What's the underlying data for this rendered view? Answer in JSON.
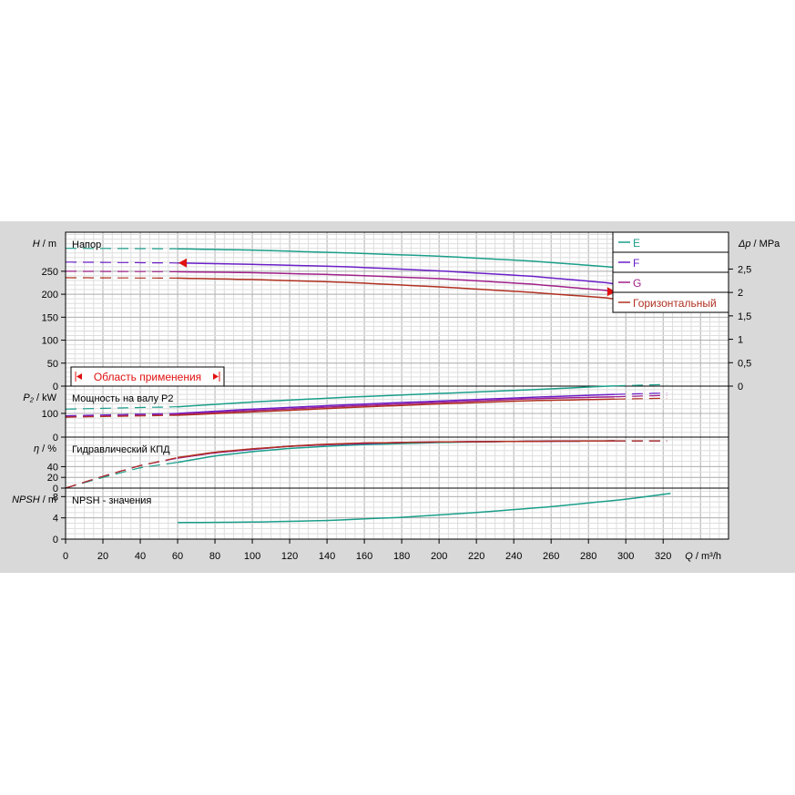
{
  "chart_data": {
    "type": "line",
    "x_axis": {
      "label_symbol": "Q",
      "label_unit": "m³/h",
      "range": [
        0,
        355
      ],
      "ticks": [
        "0",
        "20",
        "40",
        "60",
        "80",
        "100",
        "120",
        "140",
        "160",
        "180",
        "200",
        "220",
        "240",
        "260",
        "280",
        "300",
        "320"
      ]
    },
    "panels": [
      {
        "id": "head",
        "title": "Напор",
        "y_symbol": "H",
        "y_unit": "m",
        "range": [
          0,
          335
        ],
        "ticks": [
          "0",
          "50",
          "100",
          "150",
          "200",
          "250"
        ],
        "right_axis": {
          "symbol": "Δp",
          "unit": "MPa",
          "ticks": [
            "0",
            "0,5",
            "1",
            "1,5",
            "2",
            "2,5"
          ]
        },
        "series": [
          {
            "name": "E",
            "color": "#1a9e8a",
            "dash_until": 60,
            "x": [
              0,
              60,
              100,
              150,
              200,
              250,
              290,
              322
            ],
            "y": [
              300,
              299,
              296,
              290,
              283,
              272,
              260,
              247
            ]
          },
          {
            "name": "F",
            "color": "#6a1fc8",
            "dash_until": 60,
            "x": [
              0,
              60,
              100,
              150,
              200,
              250,
              290,
              322
            ],
            "y": [
              270,
              268,
              265,
              260,
              251,
              239,
              225,
              206
            ]
          },
          {
            "name": "G",
            "color": "#a0208a",
            "dash_until": 60,
            "x": [
              0,
              60,
              100,
              150,
              200,
              250,
              290,
              322
            ],
            "y": [
              250,
              249,
              247,
              242,
              234,
              222,
              208,
              190
            ]
          },
          {
            "name": "Горизонтальный",
            "color": "#b03020",
            "dash_until": 60,
            "x": [
              0,
              60,
              100,
              150,
              200,
              250,
              290,
              322
            ],
            "y": [
              236,
              235,
              232,
              226,
              216,
              204,
              192,
              172
            ]
          }
        ]
      },
      {
        "id": "power",
        "title": "Мощность на валу P2",
        "y_symbol": "P₂",
        "y_unit": "kW",
        "range": [
          0,
          215
        ],
        "ticks": [
          "0",
          "100"
        ],
        "series": [
          {
            "name": "E",
            "color": "#1a9e8a",
            "dash_until": 60,
            "dash_from": 294,
            "x": [
              0,
              60,
              100,
              150,
              200,
              250,
              294,
              322
            ],
            "y": [
              118,
              128,
              148,
              168,
              184,
              200,
              216,
              222
            ]
          },
          {
            "name": "F",
            "color": "#6a1fc8",
            "dash_until": 60,
            "dash_from": 294,
            "x": [
              0,
              60,
              100,
              150,
              200,
              250,
              294,
              322
            ],
            "y": [
              90,
              100,
              118,
              136,
              152,
              168,
              180,
              186
            ]
          },
          {
            "name": "G",
            "color": "#a0208a",
            "dash_until": 60,
            "dash_from": 294,
            "x": [
              0,
              60,
              100,
              150,
              200,
              250,
              294,
              322
            ],
            "y": [
              86,
              96,
              112,
              130,
              146,
              162,
              170,
              176
            ]
          },
          {
            "name": "Горизонтальный",
            "color": "#b03020",
            "dash_until": 60,
            "dash_from": 294,
            "x": [
              0,
              60,
              100,
              150,
              200,
              250,
              294,
              322
            ],
            "y": [
              84,
              92,
              106,
              124,
              140,
              154,
              160,
              164
            ]
          }
        ]
      },
      {
        "id": "efficiency",
        "title": "Гидравлический КПД",
        "y_symbol": "η",
        "y_unit": "%",
        "range": [
          0,
          95
        ],
        "ticks": [
          "0",
          "20",
          "40"
        ],
        "series": [
          {
            "name": "E",
            "color": "#1a9e8a",
            "dash_until": 60,
            "dash_from": 294,
            "x": [
              0,
              20,
              40,
              60,
              80,
              100,
              120,
              140,
              160,
              180,
              200,
              240,
              294,
              322
            ],
            "y": [
              0,
              20,
              38,
              48,
              60,
              68,
              74,
              78,
              81,
              83,
              85,
              87,
              88,
              88
            ]
          },
          {
            "name": "F",
            "color": "#6a1fc8",
            "dash_until": 60,
            "dash_from": 294,
            "x": [
              0,
              20,
              40,
              60,
              80,
              100,
              120,
              140,
              160,
              180,
              200,
              240,
              294,
              322
            ],
            "y": [
              0,
              22,
              42,
              56,
              66,
              72,
              78,
              81,
              83,
              85,
              86,
              87,
              88,
              88
            ]
          },
          {
            "name": "G",
            "color": "#a0208a",
            "dash_until": 60,
            "dash_from": 294,
            "x": [
              0,
              20,
              40,
              60,
              80,
              100,
              120,
              140,
              160,
              180,
              200,
              240,
              294,
              322
            ],
            "y": [
              0,
              22,
              42,
              56,
              66,
              73,
              78,
              81,
              84,
              85,
              86,
              87,
              88,
              88
            ]
          },
          {
            "name": "Горизонтальный",
            "color": "#b03020",
            "dash_until": 60,
            "dash_from": 294,
            "x": [
              0,
              20,
              40,
              60,
              80,
              100,
              120,
              140,
              160,
              180,
              200,
              240,
              294,
              322
            ],
            "y": [
              0,
              22,
              42,
              57,
              67,
              73,
              78,
              82,
              84,
              85,
              86,
              87,
              88,
              88
            ]
          }
        ]
      },
      {
        "id": "npsh",
        "title": "NPSH - значения",
        "y_symbol": "NPSH",
        "y_unit": "m",
        "range": [
          0,
          9.6
        ],
        "ticks": [
          "0",
          "4",
          "8"
        ],
        "series": [
          {
            "name": "NPSH",
            "color": "#1a9e8a",
            "x": [
              60,
              100,
              140,
              180,
              220,
              260,
              300,
              324
            ],
            "y": [
              3.1,
              3.2,
              3.5,
              4.1,
              5.0,
              6.1,
              7.5,
              8.6
            ]
          }
        ]
      }
    ],
    "application_range": {
      "label": "Область применения",
      "x": [
        60,
        294
      ]
    },
    "legend": {
      "placement": "top-right",
      "entries": [
        "E",
        "F",
        "G",
        "Горизонтальный"
      ]
    },
    "grid": true
  }
}
